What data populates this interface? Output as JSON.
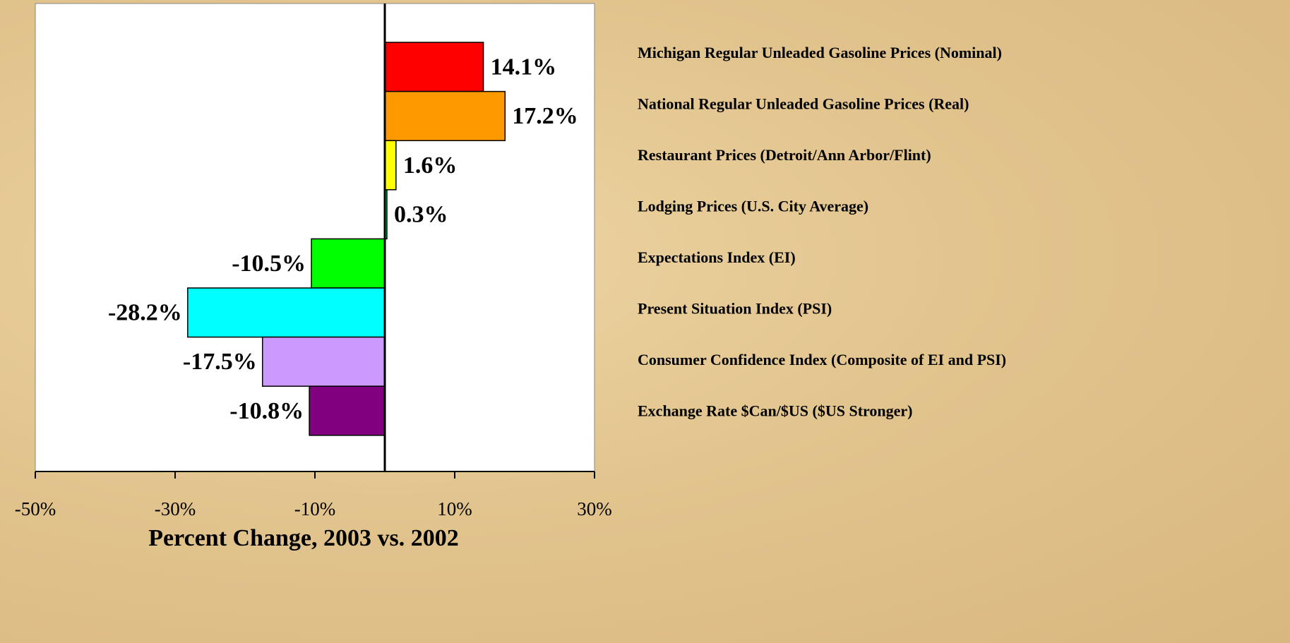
{
  "chart_data": {
    "type": "bar",
    "orientation": "horizontal",
    "categories": [
      "Michigan Regular Unleaded Gasoline Prices (Nominal)",
      "National Regular Unleaded Gasoline Prices (Real)",
      "Restaurant Prices (Detroit/Ann Arbor/Flint)",
      "Lodging Prices (U.S. City Average)",
      "Expectations Index (EI)",
      "Present Situation Index (PSI)",
      "Consumer Confidence Index (Composite of EI and PSI)",
      "Exchange Rate $Can/$US ($US Stronger)"
    ],
    "values": [
      14.1,
      17.2,
      1.6,
      0.3,
      -10.5,
      -28.2,
      -17.5,
      -10.8
    ],
    "value_labels": [
      "14.1%",
      "17.2%",
      "1.6%",
      "0.3%",
      "-10.5%",
      "-28.2%",
      "-17.5%",
      "-10.8%"
    ],
    "colors": [
      "#ff0000",
      "#ff9900",
      "#ffff00",
      "#00ff66",
      "#00ff00",
      "#00ffff",
      "#cc99ff",
      "#800080"
    ],
    "x_label": "Percent Change, 2003 vs. 2002",
    "xlim": [
      -50,
      30
    ],
    "xticks": [
      {
        "value": -50,
        "label": "-50%"
      },
      {
        "value": -30,
        "label": "-30%"
      },
      {
        "value": -10,
        "label": "-10%"
      },
      {
        "value": 10,
        "label": "10%"
      },
      {
        "value": 30,
        "label": "30%"
      }
    ]
  }
}
